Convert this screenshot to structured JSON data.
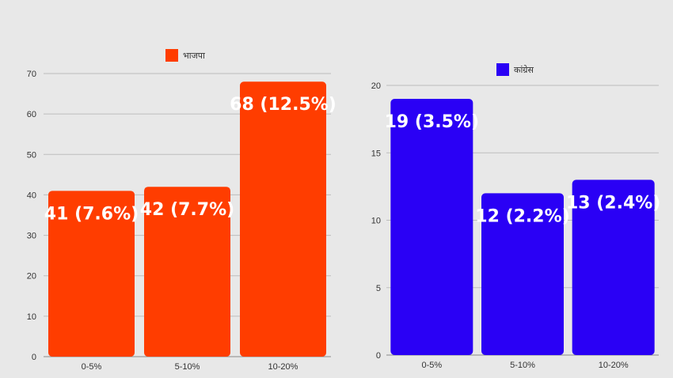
{
  "chart_data": [
    {
      "type": "bar",
      "legend_position": "top",
      "grid": true,
      "color": "#ff3d00",
      "categories": [
        "0-5%",
        "5-10%",
        "10-20%"
      ],
      "ylim": [
        0,
        70
      ],
      "yticks": [
        0,
        10,
        20,
        30,
        40,
        50,
        60,
        70
      ],
      "series": [
        {
          "name": "भाजपा",
          "values": [
            41,
            42,
            68
          ],
          "labels": [
            "41 (7.6%)",
            "42 (7.7%)",
            "68 (12.5%)"
          ]
        }
      ]
    },
    {
      "type": "bar",
      "legend_position": "top",
      "grid": true,
      "color": "#2a00f5",
      "categories": [
        "0-5%",
        "5-10%",
        "10-20%"
      ],
      "ylim": [
        0,
        20
      ],
      "yticks": [
        0,
        5,
        10,
        15,
        20
      ],
      "series": [
        {
          "name": "कांग्रेस",
          "values": [
            19,
            12,
            13
          ],
          "labels": [
            "19 (3.5%)",
            "12 (2.2%)",
            "13 (2.4%)"
          ]
        }
      ]
    }
  ]
}
